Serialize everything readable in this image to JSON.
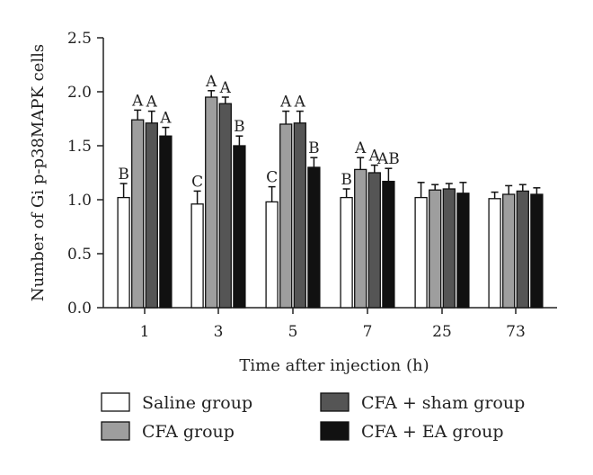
{
  "chart_data": {
    "type": "bar",
    "title": "",
    "xlabel": "Time after injection (h)",
    "ylabel": "Number of Gi p-p38MAPK cells",
    "ylim": [
      0,
      2.5
    ],
    "yticks": [
      "0.0",
      "0.5",
      "1.0",
      "1.5",
      "2.0",
      "2.5"
    ],
    "categories": [
      "1",
      "3",
      "5",
      "7",
      "25",
      "73"
    ],
    "grid": false,
    "legend_position": "bottom",
    "series": [
      {
        "name": "Saline group",
        "color": "#ffffff",
        "values": [
          1.02,
          0.96,
          0.98,
          1.02,
          1.02,
          1.01
        ],
        "errors": [
          0.13,
          0.12,
          0.14,
          0.08,
          0.14,
          0.06
        ],
        "labels": [
          "B",
          "C",
          "C",
          "B",
          "",
          ""
        ]
      },
      {
        "name": "CFA group",
        "color": "#9e9e9e",
        "values": [
          1.74,
          1.95,
          1.7,
          1.28,
          1.09,
          1.05
        ],
        "errors": [
          0.09,
          0.06,
          0.12,
          0.11,
          0.05,
          0.08
        ],
        "labels": [
          "A",
          "A",
          "A",
          "A",
          "",
          ""
        ]
      },
      {
        "name": "CFA + sham group",
        "color": "#555555",
        "values": [
          1.71,
          1.89,
          1.71,
          1.25,
          1.1,
          1.08
        ],
        "errors": [
          0.11,
          0.06,
          0.11,
          0.07,
          0.05,
          0.06
        ],
        "labels": [
          "A",
          "A",
          "A",
          "A",
          "",
          ""
        ]
      },
      {
        "name": "CFA + EA group",
        "color": "#111111",
        "values": [
          1.59,
          1.5,
          1.3,
          1.17,
          1.06,
          1.05
        ],
        "errors": [
          0.08,
          0.09,
          0.09,
          0.12,
          0.1,
          0.06
        ],
        "labels": [
          "A",
          "B",
          "B",
          "AB",
          "",
          ""
        ]
      }
    ]
  }
}
